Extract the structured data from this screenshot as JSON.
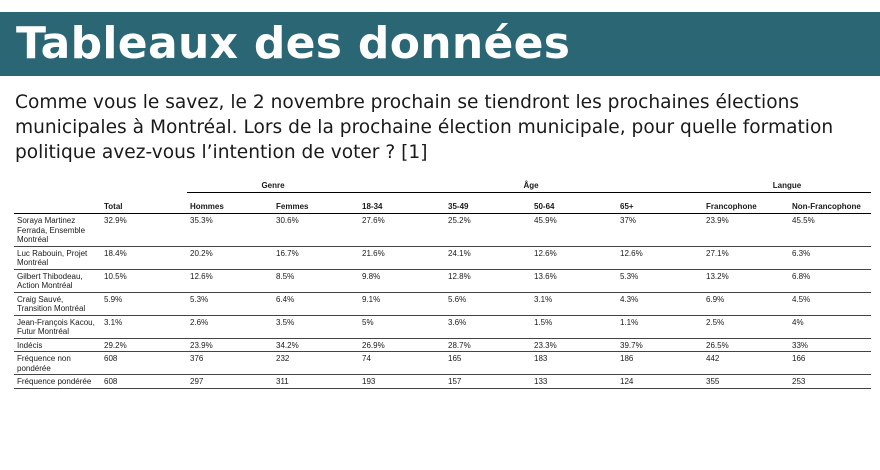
{
  "title": "Tableaux des données",
  "question": "Comme vous le savez, le 2 novembre prochain se tiendront les prochaines élections municipales à Montréal. Lors de la prochaine élection municipale, pour quelle formation politique avez-vous l’intention de voter ? [1]",
  "table": {
    "groups": {
      "genre": "Genre",
      "age": "Âge",
      "langue": "Langue"
    },
    "columns": [
      "",
      "Total",
      "Hommes",
      "Femmes",
      "18-34",
      "35-49",
      "50-64",
      "65+",
      "Francophone",
      "Non-Francophone"
    ],
    "rows": [
      {
        "label": "Soraya Martinez Ferrada, Ensemble Montréal",
        "values": [
          "32.9%",
          "35.3%",
          "30.6%",
          "27.6%",
          "25.2%",
          "45.9%",
          "37%",
          "23.9%",
          "45.5%"
        ]
      },
      {
        "label": "Luc Rabouin, Projet Montréal",
        "values": [
          "18.4%",
          "20.2%",
          "16.7%",
          "21.6%",
          "24.1%",
          "12.6%",
          "12.6%",
          "27.1%",
          "6.3%"
        ]
      },
      {
        "label": "Gilbert Thibodeau, Action Montréal",
        "values": [
          "10.5%",
          "12.6%",
          "8.5%",
          "9.8%",
          "12.8%",
          "13.6%",
          "5.3%",
          "13.2%",
          "6.8%"
        ]
      },
      {
        "label": "Craig Sauvé, Transition Montréal",
        "values": [
          "5.9%",
          "5.3%",
          "6.4%",
          "9.1%",
          "5.6%",
          "3.1%",
          "4.3%",
          "6.9%",
          "4.5%"
        ]
      },
      {
        "label": "Jean-François Kacou, Futur Montréal",
        "values": [
          "3.1%",
          "2.6%",
          "3.5%",
          "5%",
          "3.6%",
          "1.5%",
          "1.1%",
          "2.5%",
          "4%"
        ]
      },
      {
        "label": "Indécis",
        "values": [
          "29.2%",
          "23.9%",
          "34.2%",
          "26.9%",
          "28.7%",
          "23.3%",
          "39.7%",
          "26.5%",
          "33%"
        ]
      },
      {
        "label": "Fréquence non pondérée",
        "values": [
          "608",
          "376",
          "232",
          "74",
          "165",
          "183",
          "186",
          "442",
          "166"
        ]
      },
      {
        "label": "Fréquence pondérée",
        "values": [
          "608",
          "297",
          "311",
          "193",
          "157",
          "133",
          "124",
          "355",
          "253"
        ]
      }
    ]
  }
}
